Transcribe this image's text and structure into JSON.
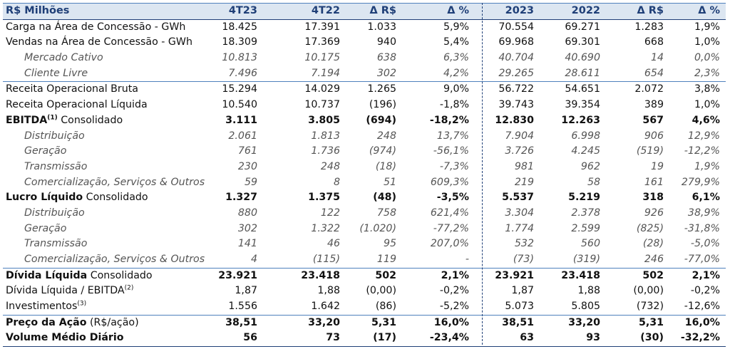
{
  "header": {
    "title": "R$ Milhões",
    "cols": [
      "4T23",
      "4T22",
      "Δ R$",
      "Δ %",
      "2023",
      "2022",
      "Δ R$",
      "Δ %"
    ]
  },
  "rows": [
    {
      "label": "Carga na Área de Concessão - GWh",
      "v": [
        "18.425",
        "17.391",
        "1.033",
        "5,9%",
        "70.554",
        "69.271",
        "1.283",
        "1,9%"
      ]
    },
    {
      "label": "Vendas na Área de Concessão - GWh",
      "v": [
        "18.309",
        "17.369",
        "940",
        "5,4%",
        "69.968",
        "69.301",
        "668",
        "1,0%"
      ]
    },
    {
      "label": "Mercado Cativo",
      "v": [
        "10.813",
        "10.175",
        "638",
        "6,3%",
        "40.704",
        "40.690",
        "14",
        "0,0%"
      ]
    },
    {
      "label": "Cliente Livre",
      "v": [
        "7.496",
        "7.194",
        "302",
        "4,2%",
        "29.265",
        "28.611",
        "654",
        "2,3%"
      ]
    },
    {
      "label": "Receita Operacional Bruta",
      "v": [
        "15.294",
        "14.029",
        "1.265",
        "9,0%",
        "56.722",
        "54.651",
        "2.072",
        "3,8%"
      ]
    },
    {
      "label": "Receita Operacional Líquida",
      "v": [
        "10.540",
        "10.737",
        "(196)",
        "-1,8%",
        "39.743",
        "39.354",
        "389",
        "1,0%"
      ]
    },
    {
      "label_bold": "EBITDA",
      "sup": "(1)",
      "label_rest": " Consolidado",
      "v": [
        "3.111",
        "3.805",
        "(694)",
        "-18,2%",
        "12.830",
        "12.263",
        "567",
        "4,6%"
      ]
    },
    {
      "label": "Distribuição",
      "v": [
        "2.061",
        "1.813",
        "248",
        "13,7%",
        "7.904",
        "6.998",
        "906",
        "12,9%"
      ]
    },
    {
      "label": "Geração",
      "v": [
        "761",
        "1.736",
        "(974)",
        "-56,1%",
        "3.726",
        "4.245",
        "(519)",
        "-12,2%"
      ]
    },
    {
      "label": "Transmissão",
      "v": [
        "230",
        "248",
        "(18)",
        "-7,3%",
        "981",
        "962",
        "19",
        "1,9%"
      ]
    },
    {
      "label": "Comercialização, Serviços & Outros",
      "v": [
        "59",
        "8",
        "51",
        "609,3%",
        "219",
        "58",
        "161",
        "279,9%"
      ]
    },
    {
      "label_bold": "Lucro Líquido",
      "label_rest": " Consolidado",
      "v": [
        "1.327",
        "1.375",
        "(48)",
        "-3,5%",
        "5.537",
        "5.219",
        "318",
        "6,1%"
      ]
    },
    {
      "label": "Distribuição",
      "v": [
        "880",
        "122",
        "758",
        "621,4%",
        "3.304",
        "2.378",
        "926",
        "38,9%"
      ]
    },
    {
      "label": "Geração",
      "v": [
        "302",
        "1.322",
        "(1.020)",
        "-77,2%",
        "1.774",
        "2.599",
        "(825)",
        "-31,8%"
      ]
    },
    {
      "label": "Transmissão",
      "v": [
        "141",
        "46",
        "95",
        "207,0%",
        "532",
        "560",
        "(28)",
        "-5,0%"
      ]
    },
    {
      "label": "Comercialização, Serviços & Outros",
      "v": [
        "4",
        "(115)",
        "119",
        "-",
        "(73)",
        "(319)",
        "246",
        "-77,0%"
      ]
    },
    {
      "label_bold": "Dívida Líquida",
      "label_rest": " Consolidado",
      "v": [
        "23.921",
        "23.418",
        "502",
        "2,1%",
        "23.921",
        "23.418",
        "502",
        "2,1%"
      ]
    },
    {
      "label": "Dívida Líquida / EBITDA",
      "sup": "(2)",
      "v": [
        "1,87",
        "1,88",
        "(0,00)",
        "-0,2%",
        "1,87",
        "1,88",
        "(0,00)",
        "-0,2%"
      ]
    },
    {
      "label": "Investimentos",
      "sup": "(3)",
      "v": [
        "1.556",
        "1.642",
        "(86)",
        "-5,2%",
        "5.073",
        "5.805",
        "(732)",
        "-12,6%"
      ]
    },
    {
      "label_bold": "Preço da Ação",
      "label_rest": " (R$/ação)",
      "v": [
        "38,51",
        "33,20",
        "5,31",
        "16,0%",
        "38,51",
        "33,20",
        "5,31",
        "16,0%"
      ]
    },
    {
      "label_bold": "Volume Médio Diário",
      "v": [
        "56",
        "73",
        "(17)",
        "-23,4%",
        "63",
        "93",
        "(30)",
        "-32,2%"
      ]
    }
  ]
}
